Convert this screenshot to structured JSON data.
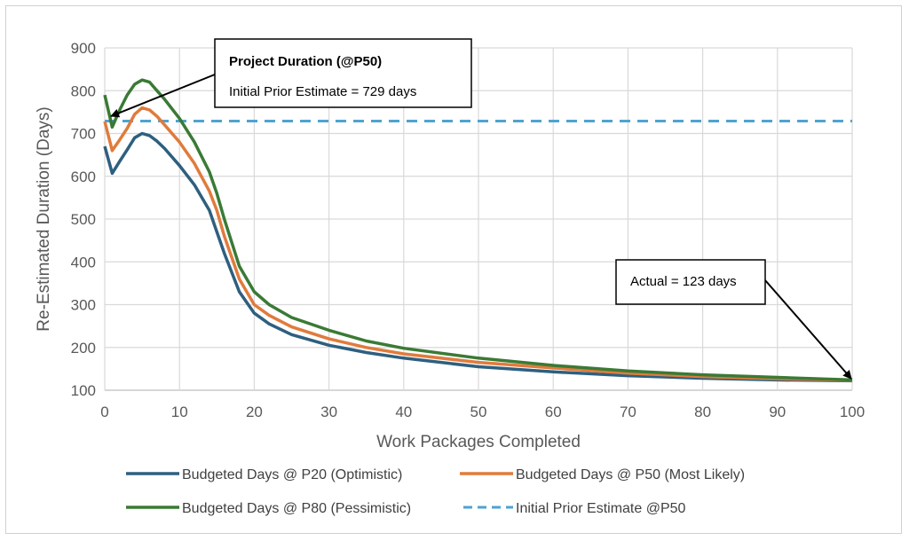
{
  "chart_data": {
    "type": "line",
    "title": "",
    "xlabel": "Work Packages Completed",
    "ylabel": "Re-Estimated Duration (Days)",
    "xlim": [
      0,
      100
    ],
    "ylim": [
      100,
      900
    ],
    "xticks": [
      0,
      10,
      20,
      30,
      40,
      50,
      60,
      70,
      80,
      90,
      100
    ],
    "yticks": [
      100,
      200,
      300,
      400,
      500,
      600,
      700,
      800,
      900
    ],
    "grid": true,
    "legend_position": "bottom",
    "x": [
      0,
      1,
      2,
      3,
      4,
      5,
      6,
      7,
      8,
      10,
      12,
      14,
      15,
      16,
      18,
      20,
      22,
      25,
      30,
      35,
      40,
      50,
      60,
      70,
      80,
      90,
      100
    ],
    "series": [
      {
        "name": "Budgeted Days @ P20 (Optimistic)",
        "color": "#2e5f7f",
        "style": "solid",
        "values": [
          670,
          607,
          635,
          662,
          690,
          700,
          695,
          682,
          665,
          625,
          580,
          520,
          470,
          420,
          330,
          280,
          255,
          230,
          205,
          188,
          175,
          155,
          143,
          134,
          128,
          124,
          122
        ]
      },
      {
        "name": "Budgeted Days @ P50 (Most Likely)",
        "color": "#e07b3c",
        "style": "solid",
        "values": [
          728,
          660,
          685,
          712,
          745,
          760,
          755,
          740,
          720,
          680,
          630,
          565,
          520,
          460,
          360,
          300,
          275,
          248,
          220,
          200,
          185,
          165,
          152,
          140,
          132,
          127,
          123
        ]
      },
      {
        "name": "Budgeted Days @ P80 (Pessimistic)",
        "color": "#3a7a35",
        "style": "solid",
        "values": [
          790,
          715,
          755,
          790,
          815,
          825,
          820,
          800,
          780,
          735,
          680,
          610,
          560,
          500,
          390,
          330,
          300,
          270,
          240,
          215,
          198,
          175,
          158,
          145,
          136,
          130,
          124
        ]
      },
      {
        "name": "Initial Prior Estimate @P50",
        "color": "#4ea3d1",
        "style": "dashed",
        "values": [
          729,
          729,
          729,
          729,
          729,
          729,
          729,
          729,
          729,
          729,
          729,
          729,
          729,
          729,
          729,
          729,
          729,
          729,
          729,
          729,
          729,
          729,
          729,
          729,
          729,
          729,
          729
        ]
      }
    ],
    "annotations": [
      {
        "title": "Project Duration (@P50)",
        "text": "Initial Prior Estimate = 729 days",
        "points_to": [
          0.7,
          729
        ]
      },
      {
        "text": "Actual = 123 days",
        "points_to": [
          100,
          123
        ]
      }
    ]
  }
}
